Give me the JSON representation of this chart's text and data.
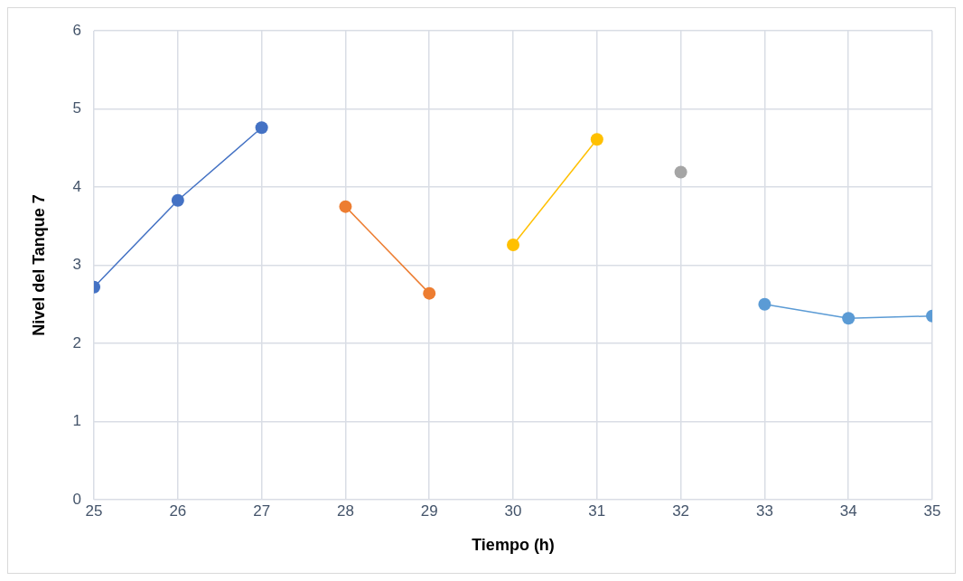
{
  "chart_data": {
    "type": "line",
    "xlabel": "Tiempo (h)",
    "ylabel": "Nivel del Tanque 7",
    "xlim": [
      25,
      35
    ],
    "xticks": [
      25,
      26,
      27,
      28,
      29,
      30,
      31,
      32,
      33,
      34,
      35
    ],
    "ylim": [
      0,
      6
    ],
    "yticks": [
      0,
      1,
      2,
      3,
      4,
      5,
      6
    ],
    "grid": true,
    "marker": "circle",
    "line_style": "solid",
    "series": [
      {
        "color": "#4472c4",
        "x": [
          25,
          26,
          27
        ],
        "values": [
          2.72,
          3.83,
          4.76
        ]
      },
      {
        "color": "#ed7d31",
        "x": [
          28,
          29
        ],
        "values": [
          3.75,
          2.64
        ]
      },
      {
        "color": "#ffc000",
        "x": [
          30,
          31
        ],
        "values": [
          3.26,
          4.61
        ]
      },
      {
        "color": "#a5a5a5",
        "x": [
          32
        ],
        "values": [
          4.19
        ]
      },
      {
        "color": "#5b9bd5",
        "x": [
          33,
          34,
          35
        ],
        "values": [
          2.5,
          2.32,
          2.35
        ]
      }
    ]
  }
}
